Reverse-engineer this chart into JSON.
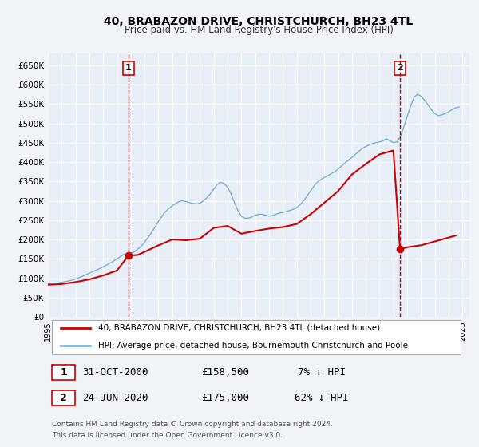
{
  "title": "40, BRABAZON DRIVE, CHRISTCHURCH, BH23 4TL",
  "subtitle": "Price paid vs. HM Land Registry's House Price Index (HPI)",
  "background_color": "#f0f4ff",
  "plot_bg_color": "#e8eef8",
  "grid_color": "#ffffff",
  "ylim": [
    0,
    680000
  ],
  "yticks": [
    0,
    50000,
    100000,
    150000,
    200000,
    250000,
    300000,
    350000,
    400000,
    450000,
    500000,
    550000,
    600000,
    650000
  ],
  "ytick_labels": [
    "£0",
    "£50K",
    "£100K",
    "£150K",
    "£200K",
    "£250K",
    "£300K",
    "£350K",
    "£400K",
    "£450K",
    "£500K",
    "£550K",
    "£600K",
    "£650K"
  ],
  "xlim_start": 1995.0,
  "xlim_end": 2025.5,
  "xticks": [
    1995,
    1996,
    1997,
    1998,
    1999,
    2000,
    2001,
    2002,
    2003,
    2004,
    2005,
    2006,
    2007,
    2008,
    2009,
    2010,
    2011,
    2012,
    2013,
    2014,
    2015,
    2016,
    2017,
    2018,
    2019,
    2020,
    2021,
    2022,
    2023,
    2024,
    2025
  ],
  "red_line_color": "#cc0000",
  "blue_line_color": "#7ab0d4",
  "transaction_1_x": 2000.83,
  "transaction_1_y": 158500,
  "transaction_1_label": "1",
  "transaction_2_x": 2020.48,
  "transaction_2_y": 175000,
  "transaction_2_label": "2",
  "vline_color": "#cc0000",
  "marker_color": "#cc0000",
  "legend_label_red": "40, BRABAZON DRIVE, CHRISTCHURCH, BH23 4TL (detached house)",
  "legend_label_blue": "HPI: Average price, detached house, Bournemouth Christchurch and Poole",
  "table_row1": [
    "1",
    "31-OCT-2000",
    "£158,500",
    "7% ↓ HPI"
  ],
  "table_row2": [
    "2",
    "24-JUN-2020",
    "£175,000",
    "62% ↓ HPI"
  ],
  "footer_line1": "Contains HM Land Registry data © Crown copyright and database right 2024.",
  "footer_line2": "This data is licensed under the Open Government Licence v3.0.",
  "hpi_x": [
    1995.0,
    1995.25,
    1995.5,
    1995.75,
    1996.0,
    1996.25,
    1996.5,
    1996.75,
    1997.0,
    1997.25,
    1997.5,
    1997.75,
    1998.0,
    1998.25,
    1998.5,
    1998.75,
    1999.0,
    1999.25,
    1999.5,
    1999.75,
    2000.0,
    2000.25,
    2000.5,
    2000.75,
    2001.0,
    2001.25,
    2001.5,
    2001.75,
    2002.0,
    2002.25,
    2002.5,
    2002.75,
    2003.0,
    2003.25,
    2003.5,
    2003.75,
    2004.0,
    2004.25,
    2004.5,
    2004.75,
    2005.0,
    2005.25,
    2005.5,
    2005.75,
    2006.0,
    2006.25,
    2006.5,
    2006.75,
    2007.0,
    2007.25,
    2007.5,
    2007.75,
    2008.0,
    2008.25,
    2008.5,
    2008.75,
    2009.0,
    2009.25,
    2009.5,
    2009.75,
    2010.0,
    2010.25,
    2010.5,
    2010.75,
    2011.0,
    2011.25,
    2011.5,
    2011.75,
    2012.0,
    2012.25,
    2012.5,
    2012.75,
    2013.0,
    2013.25,
    2013.5,
    2013.75,
    2014.0,
    2014.25,
    2014.5,
    2014.75,
    2015.0,
    2015.25,
    2015.5,
    2015.75,
    2016.0,
    2016.25,
    2016.5,
    2016.75,
    2017.0,
    2017.25,
    2017.5,
    2017.75,
    2018.0,
    2018.25,
    2018.5,
    2018.75,
    2019.0,
    2019.25,
    2019.5,
    2019.75,
    2020.0,
    2020.25,
    2020.5,
    2020.75,
    2021.0,
    2021.25,
    2021.5,
    2021.75,
    2022.0,
    2022.25,
    2022.5,
    2022.75,
    2023.0,
    2023.25,
    2023.5,
    2023.75,
    2024.0,
    2024.25,
    2024.5,
    2024.75
  ],
  "hpi_y": [
    85000,
    86000,
    87000,
    88000,
    89000,
    91000,
    93000,
    95000,
    98000,
    101000,
    105000,
    109000,
    113000,
    117000,
    121000,
    125000,
    129000,
    134000,
    139000,
    144000,
    150000,
    156000,
    162000,
    163000,
    165000,
    168000,
    175000,
    183000,
    193000,
    205000,
    218000,
    232000,
    247000,
    260000,
    272000,
    280000,
    287000,
    293000,
    298000,
    300000,
    298000,
    295000,
    293000,
    292000,
    294000,
    300000,
    308000,
    318000,
    330000,
    342000,
    348000,
    345000,
    335000,
    318000,
    295000,
    275000,
    260000,
    255000,
    255000,
    258000,
    263000,
    265000,
    265000,
    263000,
    260000,
    262000,
    265000,
    268000,
    270000,
    272000,
    275000,
    278000,
    282000,
    290000,
    300000,
    312000,
    325000,
    338000,
    348000,
    355000,
    360000,
    365000,
    370000,
    375000,
    382000,
    390000,
    398000,
    405000,
    412000,
    420000,
    428000,
    435000,
    440000,
    445000,
    448000,
    450000,
    452000,
    455000,
    460000,
    455000,
    450000,
    452000,
    465000,
    490000,
    518000,
    545000,
    568000,
    575000,
    570000,
    560000,
    548000,
    535000,
    525000,
    520000,
    522000,
    525000,
    530000,
    535000,
    540000,
    542000
  ],
  "property_x": [
    1995.0,
    1996.0,
    1997.0,
    1998.0,
    1999.0,
    2000.0,
    2000.83,
    2001.5,
    2002.0,
    2003.0,
    2004.0,
    2005.0,
    2006.0,
    2007.0,
    2008.0,
    2009.0,
    2010.0,
    2011.0,
    2012.0,
    2013.0,
    2014.0,
    2015.0,
    2016.0,
    2017.0,
    2018.0,
    2019.0,
    2019.5,
    2020.0,
    2020.48,
    2021.0,
    2022.0,
    2023.0,
    2024.0,
    2024.5
  ],
  "property_y": [
    83000,
    85000,
    90000,
    97000,
    107000,
    120000,
    158500,
    160000,
    168000,
    185000,
    200000,
    198000,
    202000,
    230000,
    235000,
    215000,
    222000,
    228000,
    232000,
    240000,
    265000,
    295000,
    325000,
    368000,
    395000,
    420000,
    425000,
    430000,
    175000,
    180000,
    185000,
    195000,
    205000,
    210000
  ]
}
